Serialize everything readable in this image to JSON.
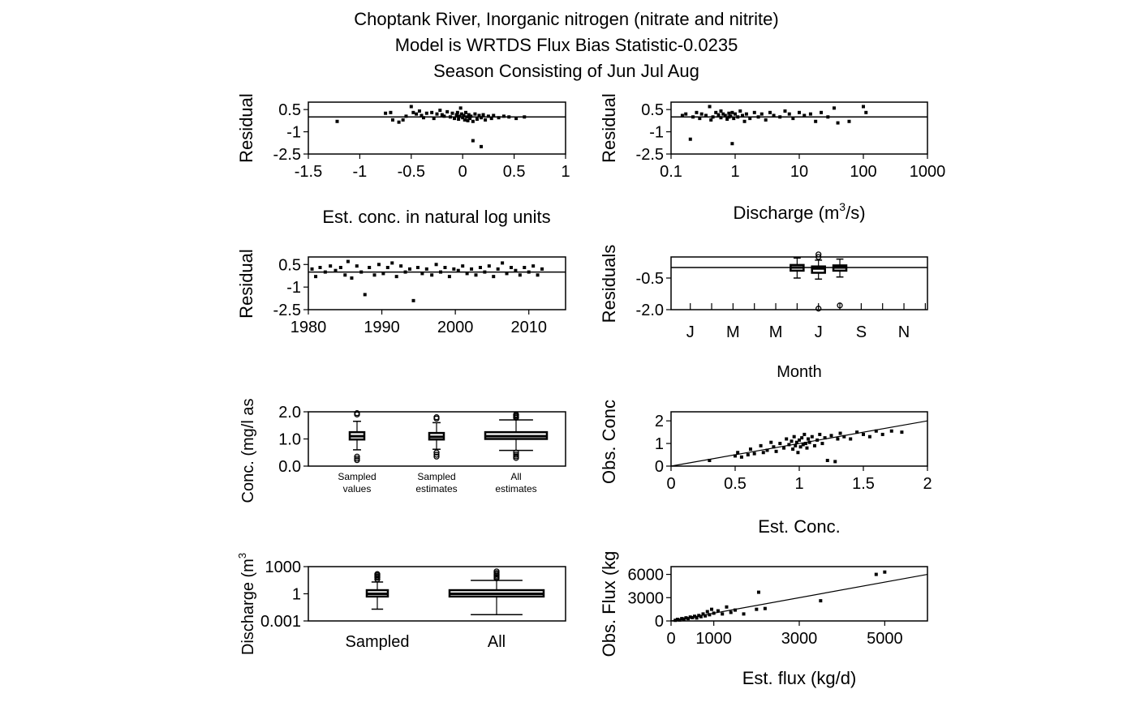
{
  "title_lines": [
    "Choptank River, Inorganic nitrogen (nitrate and nitrite)",
    "Model is WRTDS Flux Bias Statistic-0.0235",
    "Season Consisting of Jun Jul Aug"
  ],
  "chart_data": [
    {
      "id": "resid-vs-estconc",
      "type": "scatter",
      "xlabel": "Est. conc. in natural log units",
      "ylabel": "Residual",
      "xlim": [
        -1.5,
        1.0
      ],
      "ylim": [
        -2.5,
        1.0
      ],
      "xticks": [
        -1.5,
        -1.0,
        -0.5,
        0.0,
        0.5,
        1.0
      ],
      "xtick_labels": [
        "-1.5",
        "-1",
        "-0.5",
        "0",
        "0.5",
        "1"
      ],
      "yticks": [
        0.5,
        -1.0,
        -2.5
      ],
      "ytick_labels": [
        "0.5",
        "-1",
        "-2.5"
      ],
      "hline": 0,
      "points": [
        [
          -1.22,
          -0.3
        ],
        [
          -0.75,
          0.25
        ],
        [
          -0.7,
          0.3
        ],
        [
          -0.68,
          -0.2
        ],
        [
          -0.62,
          -0.35
        ],
        [
          -0.58,
          -0.2
        ],
        [
          -0.55,
          0.05
        ],
        [
          -0.5,
          0.7
        ],
        [
          -0.48,
          0.3
        ],
        [
          -0.45,
          0.2
        ],
        [
          -0.42,
          0.4
        ],
        [
          -0.4,
          0.1
        ],
        [
          -0.38,
          -0.05
        ],
        [
          -0.35,
          0.25
        ],
        [
          -0.3,
          0.3
        ],
        [
          -0.28,
          -0.1
        ],
        [
          -0.25,
          0.2
        ],
        [
          -0.22,
          0.45
        ],
        [
          -0.2,
          0.15
        ],
        [
          -0.18,
          0.05
        ],
        [
          -0.15,
          0.35
        ],
        [
          -0.12,
          0.0
        ],
        [
          -0.1,
          0.25
        ],
        [
          -0.08,
          -0.1
        ],
        [
          -0.06,
          0.15
        ],
        [
          -0.05,
          0.3
        ],
        [
          -0.04,
          -0.15
        ],
        [
          -0.03,
          0.05
        ],
        [
          -0.02,
          0.6
        ],
        [
          -0.01,
          0.2
        ],
        [
          0.0,
          -0.05
        ],
        [
          0.01,
          0.1
        ],
        [
          0.02,
          -0.2
        ],
        [
          0.03,
          0.3
        ],
        [
          0.04,
          0.0
        ],
        [
          0.05,
          -0.25
        ],
        [
          0.06,
          0.15
        ],
        [
          0.07,
          -0.1
        ],
        [
          0.08,
          0.05
        ],
        [
          0.1,
          -0.3
        ],
        [
          0.12,
          0.2
        ],
        [
          0.14,
          -0.15
        ],
        [
          0.16,
          0.1
        ],
        [
          0.18,
          -0.05
        ],
        [
          0.2,
          0.15
        ],
        [
          0.22,
          -0.2
        ],
        [
          0.25,
          0.05
        ],
        [
          0.28,
          -0.1
        ],
        [
          0.3,
          0.1
        ],
        [
          0.35,
          -0.05
        ],
        [
          0.4,
          0.05
        ],
        [
          0.45,
          0.0
        ],
        [
          0.52,
          -0.1
        ],
        [
          0.6,
          0.0
        ],
        [
          0.1,
          -1.6
        ],
        [
          0.18,
          -2.0
        ]
      ]
    },
    {
      "id": "resid-vs-discharge",
      "type": "scatter",
      "xlabel": "Discharge (m",
      "xlabel_sup": "3",
      "xlabel_tail": "/s)",
      "ylabel": "Residual",
      "xscale": "log",
      "xlim": [
        0.1,
        1000
      ],
      "ylim": [
        -2.5,
        1.0
      ],
      "xticks": [
        0.1,
        1,
        10,
        100,
        1000
      ],
      "xtick_labels": [
        "0.1",
        "1",
        "10",
        "100",
        "1000"
      ],
      "yticks": [
        0.5,
        -1.0,
        -2.5
      ],
      "ytick_labels": [
        "0.5",
        "-1",
        "-2.5"
      ],
      "hline": 0,
      "points": [
        [
          0.15,
          0.1
        ],
        [
          0.17,
          0.2
        ],
        [
          0.2,
          -1.5
        ],
        [
          0.22,
          0.0
        ],
        [
          0.25,
          0.3
        ],
        [
          0.28,
          -0.1
        ],
        [
          0.3,
          0.2
        ],
        [
          0.35,
          0.1
        ],
        [
          0.4,
          0.7
        ],
        [
          0.42,
          -0.2
        ],
        [
          0.45,
          0.0
        ],
        [
          0.5,
          0.3
        ],
        [
          0.55,
          0.15
        ],
        [
          0.6,
          -0.05
        ],
        [
          0.65,
          0.2
        ],
        [
          0.7,
          0.1
        ],
        [
          0.75,
          -0.15
        ],
        [
          0.8,
          0.25
        ],
        [
          0.85,
          0.05
        ],
        [
          0.9,
          0.3
        ],
        [
          0.95,
          -0.1
        ],
        [
          1.0,
          0.2
        ],
        [
          1.1,
          0.0
        ],
        [
          1.2,
          0.4
        ],
        [
          1.3,
          0.1
        ],
        [
          1.5,
          0.2
        ],
        [
          1.7,
          -0.1
        ],
        [
          2.0,
          0.3
        ],
        [
          2.3,
          0.0
        ],
        [
          2.6,
          0.2
        ],
        [
          3.0,
          -0.2
        ],
        [
          3.5,
          0.3
        ],
        [
          4.0,
          0.1
        ],
        [
          5.0,
          0.0
        ],
        [
          6.0,
          0.4
        ],
        [
          7.0,
          0.2
        ],
        [
          8.0,
          -0.1
        ],
        [
          10.0,
          0.3
        ],
        [
          12.0,
          0.1
        ],
        [
          15.0,
          0.2
        ],
        [
          18.0,
          -0.3
        ],
        [
          22.0,
          0.3
        ],
        [
          28.0,
          0.0
        ],
        [
          35.0,
          0.6
        ],
        [
          40.0,
          -0.4
        ],
        [
          60.0,
          -0.3
        ],
        [
          100.0,
          0.7
        ],
        [
          110.0,
          0.3
        ],
        [
          0.9,
          -1.8
        ],
        [
          0.8,
          0.0
        ],
        [
          1.4,
          -0.3
        ],
        [
          0.6,
          0.4
        ]
      ]
    },
    {
      "id": "resid-vs-year",
      "type": "scatter",
      "xlabel": "",
      "ylabel": "Residual",
      "xlim": [
        1980,
        2015
      ],
      "ylim": [
        -2.5,
        1.0
      ],
      "xticks": [
        1980,
        1990,
        2000,
        2010
      ],
      "xtick_labels": [
        "1980",
        "1990",
        "2000",
        "2010"
      ],
      "yticks": [
        0.5,
        -1.0,
        -2.5
      ],
      "ytick_labels": [
        "0.5",
        "-1",
        "-2.5"
      ],
      "hline": 0,
      "points": [
        [
          1980.5,
          0.2
        ],
        [
          1981.0,
          -0.3
        ],
        [
          1981.6,
          0.3
        ],
        [
          1982.3,
          0.0
        ],
        [
          1983.0,
          0.4
        ],
        [
          1983.7,
          0.1
        ],
        [
          1984.4,
          0.3
        ],
        [
          1985.0,
          -0.2
        ],
        [
          1985.4,
          0.7
        ],
        [
          1985.9,
          -0.4
        ],
        [
          1986.6,
          0.4
        ],
        [
          1987.2,
          0.0
        ],
        [
          1987.7,
          -1.5
        ],
        [
          1988.3,
          0.3
        ],
        [
          1989.0,
          -0.2
        ],
        [
          1989.6,
          0.5
        ],
        [
          1990.2,
          -0.1
        ],
        [
          1990.8,
          0.3
        ],
        [
          1991.4,
          0.6
        ],
        [
          1992.0,
          -0.3
        ],
        [
          1992.6,
          0.4
        ],
        [
          1993.2,
          0.0
        ],
        [
          1993.8,
          0.2
        ],
        [
          1994.3,
          -1.9
        ],
        [
          1994.9,
          0.3
        ],
        [
          1995.5,
          -0.1
        ],
        [
          1996.1,
          0.2
        ],
        [
          1996.8,
          -0.2
        ],
        [
          1997.4,
          0.5
        ],
        [
          1998.0,
          0.0
        ],
        [
          1998.6,
          0.3
        ],
        [
          1999.2,
          -0.3
        ],
        [
          1999.8,
          0.2
        ],
        [
          2000.4,
          0.1
        ],
        [
          2001.0,
          0.4
        ],
        [
          2001.6,
          -0.1
        ],
        [
          2002.2,
          0.2
        ],
        [
          2002.8,
          -0.2
        ],
        [
          2003.4,
          0.3
        ],
        [
          2004.0,
          0.0
        ],
        [
          2004.6,
          0.4
        ],
        [
          2005.2,
          -0.3
        ],
        [
          2005.8,
          0.2
        ],
        [
          2006.4,
          0.6
        ],
        [
          2007.0,
          -0.1
        ],
        [
          2007.6,
          0.3
        ],
        [
          2008.2,
          0.1
        ],
        [
          2008.8,
          -0.2
        ],
        [
          2009.4,
          0.3
        ],
        [
          2010.0,
          0.0
        ],
        [
          2010.6,
          0.4
        ],
        [
          2011.2,
          -0.2
        ],
        [
          2011.8,
          0.2
        ]
      ]
    },
    {
      "id": "resid-by-month",
      "type": "boxplot",
      "xlabel": "Month",
      "ylabel": "Residuals",
      "xlim": [
        0,
        12
      ],
      "ylim": [
        -2.0,
        0.5
      ],
      "month_labels": [
        "J",
        "M",
        "M",
        "J",
        "S",
        "N"
      ],
      "yticks": [
        -0.5,
        -2.0
      ],
      "ytick_labels": [
        "-0.5",
        "-2.0"
      ],
      "hline": 0,
      "boxes": [
        {
          "month": 6,
          "q1": -0.15,
          "median": 0.0,
          "q3": 0.12,
          "wlo": -0.5,
          "whi": 0.45,
          "outliers": []
        },
        {
          "month": 7,
          "q1": -0.25,
          "median": -0.05,
          "q3": 0.05,
          "wlo": -0.55,
          "whi": 0.35,
          "outliers": [
            0.5,
            0.62,
            -1.95
          ]
        },
        {
          "month": 8,
          "q1": -0.15,
          "median": 0.0,
          "q3": 0.1,
          "wlo": -0.45,
          "whi": 0.4,
          "outliers": [
            -1.8
          ]
        }
      ]
    },
    {
      "id": "conc-boxplots",
      "type": "boxplot",
      "xlabel": "",
      "ylabel": "Conc. (mg/l as",
      "ylim": [
        0.0,
        2.0
      ],
      "yticks": [
        0.0,
        1.0,
        2.0
      ],
      "ytick_labels": [
        "0.0",
        "1.0",
        "2.0"
      ],
      "boxes": [
        {
          "label_lines": [
            "Sampled",
            "values"
          ],
          "q1": 0.98,
          "median": 1.1,
          "q3": 1.25,
          "wlo": 0.6,
          "whi": 1.65,
          "outliers": [
            0.35,
            0.28,
            0.22,
            1.9,
            1.95
          ]
        },
        {
          "label_lines": [
            "Sampled",
            "estimates"
          ],
          "q1": 0.98,
          "median": 1.08,
          "q3": 1.22,
          "wlo": 0.62,
          "whi": 1.6,
          "outliers": [
            0.5,
            0.42,
            0.35,
            1.75,
            1.8
          ]
        },
        {
          "label_lines": [
            "All",
            "estimates"
          ],
          "q1": 1.0,
          "median": 1.1,
          "q3": 1.25,
          "wlo": 0.58,
          "whi": 1.7,
          "outliers": [
            0.5,
            0.42,
            0.36,
            0.3,
            1.78,
            1.82,
            1.86,
            1.9
          ],
          "wide": true
        }
      ]
    },
    {
      "id": "obs-vs-est-conc",
      "type": "scatter",
      "xlabel": "Est. Conc.",
      "ylabel": "Obs. Conc",
      "xlim": [
        0,
        2
      ],
      "ylim": [
        0,
        2.4
      ],
      "xticks": [
        0,
        0.5,
        1.0,
        1.5,
        2.0
      ],
      "xtick_labels": [
        "0",
        "0.5",
        "1",
        "1.5",
        "2"
      ],
      "yticks": [
        0,
        1,
        2
      ],
      "ytick_labels": [
        "0",
        "1",
        "2"
      ],
      "refline": [
        [
          0,
          0
        ],
        [
          2,
          2
        ]
      ],
      "points": [
        [
          0.3,
          0.25
        ],
        [
          0.5,
          0.45
        ],
        [
          0.52,
          0.6
        ],
        [
          0.55,
          0.4
        ],
        [
          0.6,
          0.5
        ],
        [
          0.62,
          0.75
        ],
        [
          0.65,
          0.55
        ],
        [
          0.7,
          0.9
        ],
        [
          0.72,
          0.6
        ],
        [
          0.75,
          0.7
        ],
        [
          0.78,
          1.05
        ],
        [
          0.8,
          0.85
        ],
        [
          0.82,
          0.65
        ],
        [
          0.85,
          1.0
        ],
        [
          0.88,
          0.8
        ],
        [
          0.9,
          1.2
        ],
        [
          0.92,
          0.95
        ],
        [
          0.94,
          1.1
        ],
        [
          0.95,
          0.75
        ],
        [
          0.96,
          1.3
        ],
        [
          0.97,
          0.9
        ],
        [
          0.98,
          1.05
        ],
        [
          0.99,
          0.6
        ],
        [
          1.0,
          1.15
        ],
        [
          1.01,
          0.85
        ],
        [
          1.02,
          1.25
        ],
        [
          1.03,
          0.95
        ],
        [
          1.04,
          1.4
        ],
        [
          1.05,
          1.0
        ],
        [
          1.06,
          0.8
        ],
        [
          1.07,
          1.2
        ],
        [
          1.08,
          1.05
        ],
        [
          1.1,
          1.3
        ],
        [
          1.12,
          0.9
        ],
        [
          1.14,
          1.15
        ],
        [
          1.16,
          1.4
        ],
        [
          1.18,
          1.0
        ],
        [
          1.2,
          1.25
        ],
        [
          1.22,
          0.25
        ],
        [
          1.25,
          1.35
        ],
        [
          1.28,
          0.2
        ],
        [
          1.3,
          1.2
        ],
        [
          1.32,
          1.45
        ],
        [
          1.35,
          1.3
        ],
        [
          1.4,
          1.2
        ],
        [
          1.45,
          1.5
        ],
        [
          1.5,
          1.4
        ],
        [
          1.55,
          1.3
        ],
        [
          1.6,
          1.55
        ],
        [
          1.65,
          1.4
        ],
        [
          1.72,
          1.55
        ],
        [
          1.8,
          1.5
        ]
      ]
    },
    {
      "id": "discharge-boxplots",
      "type": "boxplot",
      "xlabel": "",
      "ylabel": "Discharge (m",
      "ylabel_sup": "3",
      "yscale": "log",
      "ylim": [
        0.001,
        1000
      ],
      "yticks": [
        1000,
        1,
        0.001
      ],
      "ytick_labels": [
        "1000",
        "1",
        "0.001"
      ],
      "boxes": [
        {
          "label": "Sampled",
          "q1": 0.5,
          "median": 1.0,
          "q3": 2.5,
          "wlo": 0.02,
          "whi": 20,
          "outliers": [
            40,
            60,
            80,
            110,
            150
          ]
        },
        {
          "label": "All",
          "q1": 0.5,
          "median": 1.0,
          "q3": 2.5,
          "wlo": 0.005,
          "whi": 30,
          "outliers": [
            50,
            70,
            100,
            140,
            200,
            300
          ],
          "wide": true
        }
      ]
    },
    {
      "id": "obs-vs-est-flux",
      "type": "scatter",
      "xlabel": "Est. flux (kg/d)",
      "ylabel": "Obs. Flux (kg",
      "xlim": [
        0,
        6000
      ],
      "ylim": [
        0,
        7000
      ],
      "xticks": [
        0,
        1000,
        3000,
        5000
      ],
      "xtick_labels": [
        "0",
        "1000",
        "3000",
        "5000"
      ],
      "yticks": [
        0,
        3000,
        6000
      ],
      "ytick_labels": [
        "0",
        "3000",
        "6000"
      ],
      "refline": [
        [
          0,
          0
        ],
        [
          6000,
          6000
        ]
      ],
      "points": [
        [
          100,
          80
        ],
        [
          150,
          200
        ],
        [
          200,
          120
        ],
        [
          250,
          300
        ],
        [
          300,
          250
        ],
        [
          350,
          400
        ],
        [
          400,
          300
        ],
        [
          450,
          500
        ],
        [
          500,
          420
        ],
        [
          550,
          600
        ],
        [
          600,
          380
        ],
        [
          650,
          700
        ],
        [
          700,
          550
        ],
        [
          750,
          900
        ],
        [
          800,
          650
        ],
        [
          850,
          1200
        ],
        [
          900,
          800
        ],
        [
          950,
          1500
        ],
        [
          1000,
          1000
        ],
        [
          1100,
          1300
        ],
        [
          1200,
          900
        ],
        [
          1300,
          1800
        ],
        [
          1400,
          1100
        ],
        [
          1500,
          1400
        ],
        [
          1700,
          900
        ],
        [
          2000,
          1500
        ],
        [
          2050,
          3700
        ],
        [
          2200,
          1600
        ],
        [
          3500,
          2600
        ],
        [
          4800,
          6000
        ],
        [
          5000,
          6300
        ]
      ]
    }
  ]
}
